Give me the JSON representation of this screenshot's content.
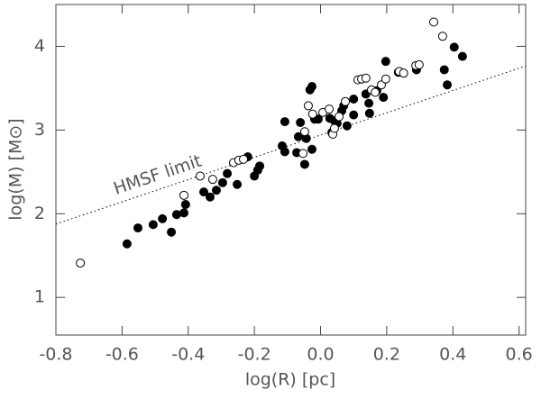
{
  "chart_data": {
    "type": "scatter",
    "x_label": "log(R) [pc]",
    "y_label": "log(M) [M⊙]",
    "xlim": [
      -0.8,
      0.62
    ],
    "ylim": [
      0.55,
      4.5
    ],
    "xticks": [
      -0.8,
      -0.6,
      -0.4,
      -0.2,
      {
        "value": 0,
        "label": "0.0"
      },
      0.2,
      0.4,
      0.6
    ],
    "yticks": [
      1,
      2,
      3,
      4
    ],
    "series": [
      {
        "marker": "filled",
        "color": "#000000",
        "x": [
          -0.585,
          -0.552,
          -0.506,
          -0.478,
          -0.451,
          -0.435,
          -0.408,
          -0.413,
          -0.353,
          -0.334,
          -0.315,
          -0.296,
          -0.252,
          -0.282,
          -0.22,
          -0.2,
          -0.19,
          -0.184,
          -0.116,
          -0.108,
          -0.108,
          -0.072,
          -0.067,
          -0.061,
          -0.048,
          -0.043,
          -0.032,
          -0.026,
          -0.026,
          -0.018,
          -0.007,
          0.028,
          0.042,
          0.05,
          0.064,
          0.07,
          0.08,
          0.034,
          0.1,
          0.1,
          0.137,
          0.146,
          0.148,
          0.17,
          0.19,
          0.197,
          0.235,
          0.374,
          0.404,
          0.429,
          0.383,
          0.29
        ],
        "values": [
          1.64,
          1.83,
          1.87,
          1.94,
          1.78,
          1.99,
          2.11,
          2.01,
          2.26,
          2.2,
          2.28,
          2.37,
          2.35,
          2.48,
          2.68,
          2.45,
          2.52,
          2.57,
          2.81,
          2.74,
          3.1,
          2.73,
          2.92,
          3.09,
          2.59,
          2.9,
          3.48,
          3.52,
          2.77,
          3.13,
          3.13,
          3.14,
          3.11,
          3.08,
          3.23,
          3.29,
          3.05,
          2.97,
          3.18,
          3.37,
          3.43,
          3.32,
          3.2,
          3.47,
          3.39,
          3.82,
          3.69,
          3.72,
          3.99,
          3.88,
          3.54,
          3.72
        ]
      },
      {
        "marker": "open",
        "color": "#000000",
        "x": [
          -0.726,
          -0.413,
          -0.364,
          -0.326,
          -0.263,
          -0.247,
          -0.233,
          -0.053,
          -0.048,
          -0.037,
          -0.024,
          0.007,
          0.026,
          0.037,
          0.042,
          0.056,
          0.075,
          0.113,
          0.124,
          0.137,
          0.154,
          0.165,
          0.184,
          0.197,
          0.238,
          0.251,
          0.288,
          0.298,
          0.369,
          0.342
        ],
        "values": [
          1.41,
          2.22,
          2.45,
          2.41,
          2.61,
          2.64,
          2.65,
          2.72,
          2.98,
          3.29,
          3.19,
          3.21,
          3.25,
          2.95,
          3.02,
          3.16,
          3.34,
          3.6,
          3.61,
          3.62,
          3.48,
          3.45,
          3.54,
          3.61,
          3.7,
          3.68,
          3.77,
          3.78,
          4.12,
          4.29
        ]
      }
    ],
    "reference_line": {
      "name": "HMSF limit",
      "x": [
        -0.8,
        0.62
      ],
      "values": [
        1.876,
        3.765
      ],
      "dash": "dotted",
      "color": "#000000"
    }
  }
}
